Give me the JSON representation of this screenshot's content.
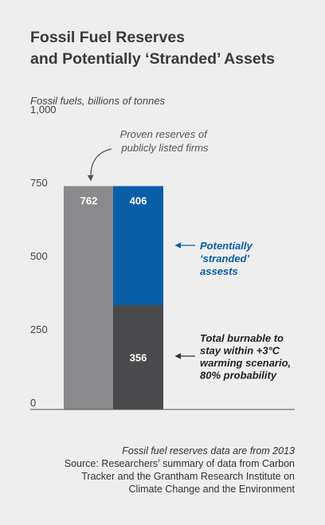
{
  "title": {
    "line1": "Fossil Fuel Reserves",
    "line2": "and Potentially ‘Stranded’ Assets"
  },
  "chart_data": {
    "type": "bar",
    "stacked": true,
    "ylabel": "Fossil fuels, billions of tonnes",
    "ylim": [
      0,
      1000
    ],
    "yticks": [
      0,
      250,
      500,
      750,
      1000
    ],
    "ytick_labels": [
      "0",
      "250",
      "500",
      "750",
      "1,000"
    ],
    "grid": false,
    "bars": [
      {
        "segments": [
          {
            "value": 762,
            "label": "762",
            "color": "#8a8a8c"
          }
        ]
      },
      {
        "segments": [
          {
            "value": 356,
            "label": "356",
            "color": "#4a4a4c"
          },
          {
            "value": 406,
            "label": "406",
            "color": "#0a5ea8"
          }
        ]
      }
    ],
    "annotations": {
      "proven": {
        "lines": [
          "Proven reserves of",
          "publicly listed firms"
        ],
        "color": "#555555"
      },
      "stranded": {
        "lines": [
          "Potentially",
          "‘stranded’",
          "assests"
        ],
        "color": "#0a5ea8"
      },
      "burnable": {
        "lines": [
          "Total burnable to",
          "stay within +3°C",
          "warming scenario,",
          "80% probability"
        ],
        "color": "#222222"
      }
    }
  },
  "footer": {
    "note": "Fossil fuel reserves data are from 2013",
    "source_lines": [
      "Source: Researchers’ summary of data from Carbon",
      "Tracker and the Grantham Research Institute on",
      "Climate Change and the Environment"
    ]
  }
}
